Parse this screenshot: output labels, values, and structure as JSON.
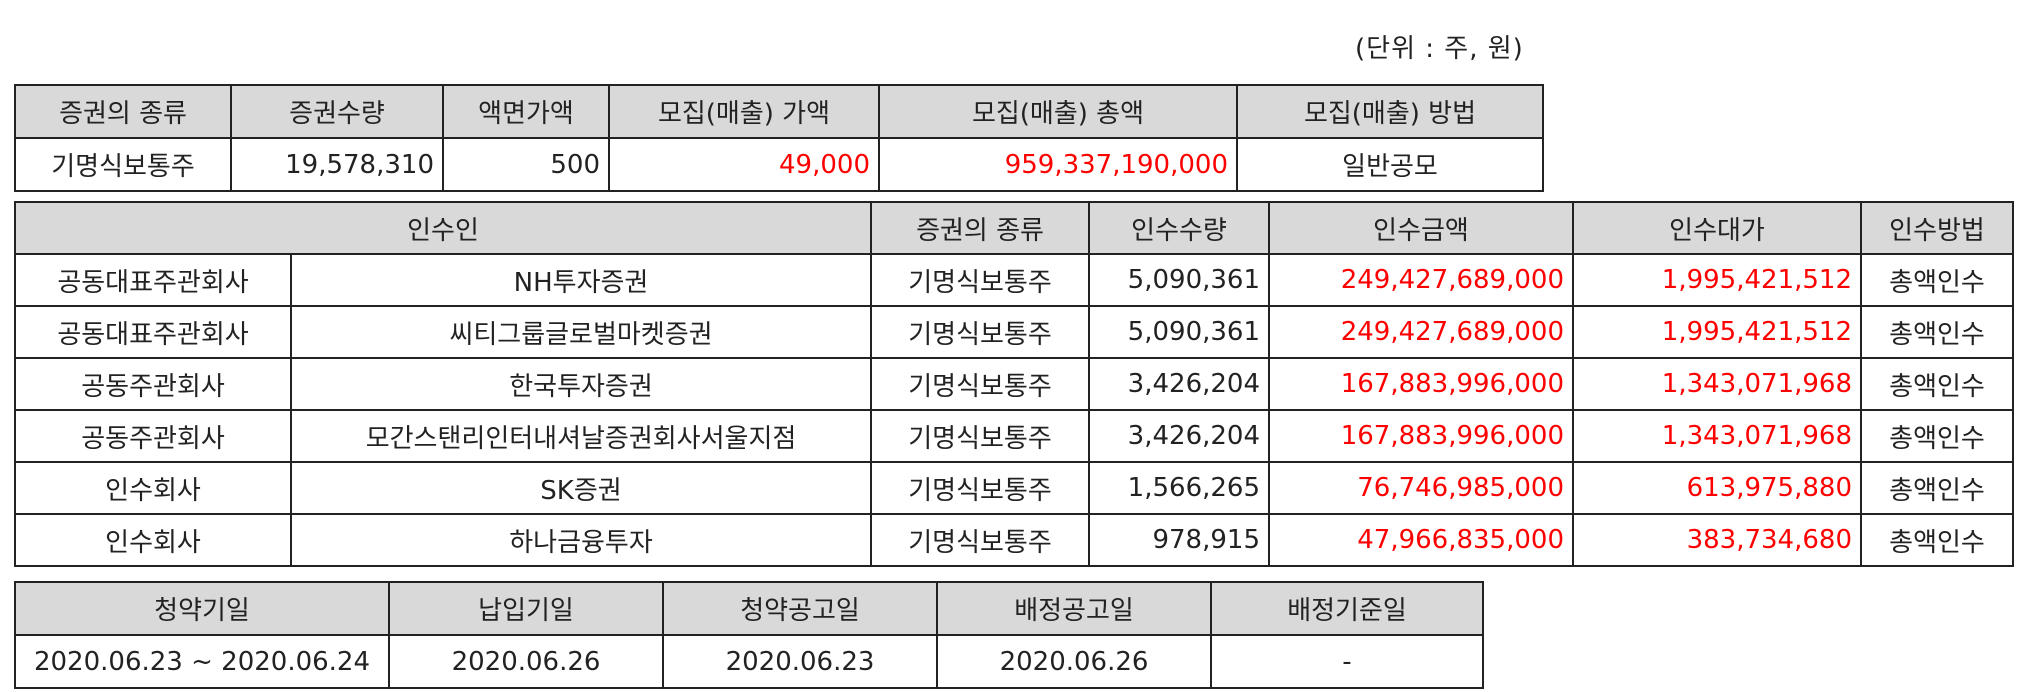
{
  "unit_note": "(단위 : 주, 원)",
  "offering": {
    "headers": [
      "증권의 종류",
      "증권수량",
      "액면가액",
      "모집(매출) 가액",
      "모집(매출) 총액",
      "모집(매출) 방법"
    ],
    "row": {
      "type": "기명식보통주",
      "quantity": "19,578,310",
      "par": "500",
      "price": "49,000",
      "total": "959,337,190,000",
      "method": "일반공모"
    }
  },
  "underwriters": {
    "headers": [
      "인수인",
      "증권의 종류",
      "인수수량",
      "인수금액",
      "인수대가",
      "인수방법"
    ],
    "rows": [
      {
        "role": "공동대표주관회사",
        "name": "NH투자증권",
        "type": "기명식보통주",
        "qty": "5,090,361",
        "amount": "249,427,689,000",
        "fee": "1,995,421,512",
        "method": "총액인수"
      },
      {
        "role": "공동대표주관회사",
        "name": "씨티그룹글로벌마켓증권",
        "type": "기명식보통주",
        "qty": "5,090,361",
        "amount": "249,427,689,000",
        "fee": "1,995,421,512",
        "method": "총액인수"
      },
      {
        "role": "공동주관회사",
        "name": "한국투자증권",
        "type": "기명식보통주",
        "qty": "3,426,204",
        "amount": "167,883,996,000",
        "fee": "1,343,071,968",
        "method": "총액인수"
      },
      {
        "role": "공동주관회사",
        "name": "모간스탠리인터내셔날증권회사서울지점",
        "type": "기명식보통주",
        "qty": "3,426,204",
        "amount": "167,883,996,000",
        "fee": "1,343,071,968",
        "method": "총액인수"
      },
      {
        "role": "인수회사",
        "name": "SK증권",
        "type": "기명식보통주",
        "qty": "1,566,265",
        "amount": "76,746,985,000",
        "fee": "613,975,880",
        "method": "총액인수"
      },
      {
        "role": "인수회사",
        "name": "하나금융투자",
        "type": "기명식보통주",
        "qty": "978,915",
        "amount": "47,966,835,000",
        "fee": "383,734,680",
        "method": "총액인수"
      }
    ]
  },
  "schedule": {
    "headers": [
      "청약기일",
      "납입기일",
      "청약공고일",
      "배정공고일",
      "배정기준일"
    ],
    "row": [
      "2020.06.23 ~ 2020.06.24",
      "2020.06.26",
      "2020.06.23",
      "2020.06.26",
      "-"
    ]
  },
  "colors": {
    "header_bg": "#d9d9d9",
    "highlight": "#ff0000",
    "border": "#222222"
  }
}
